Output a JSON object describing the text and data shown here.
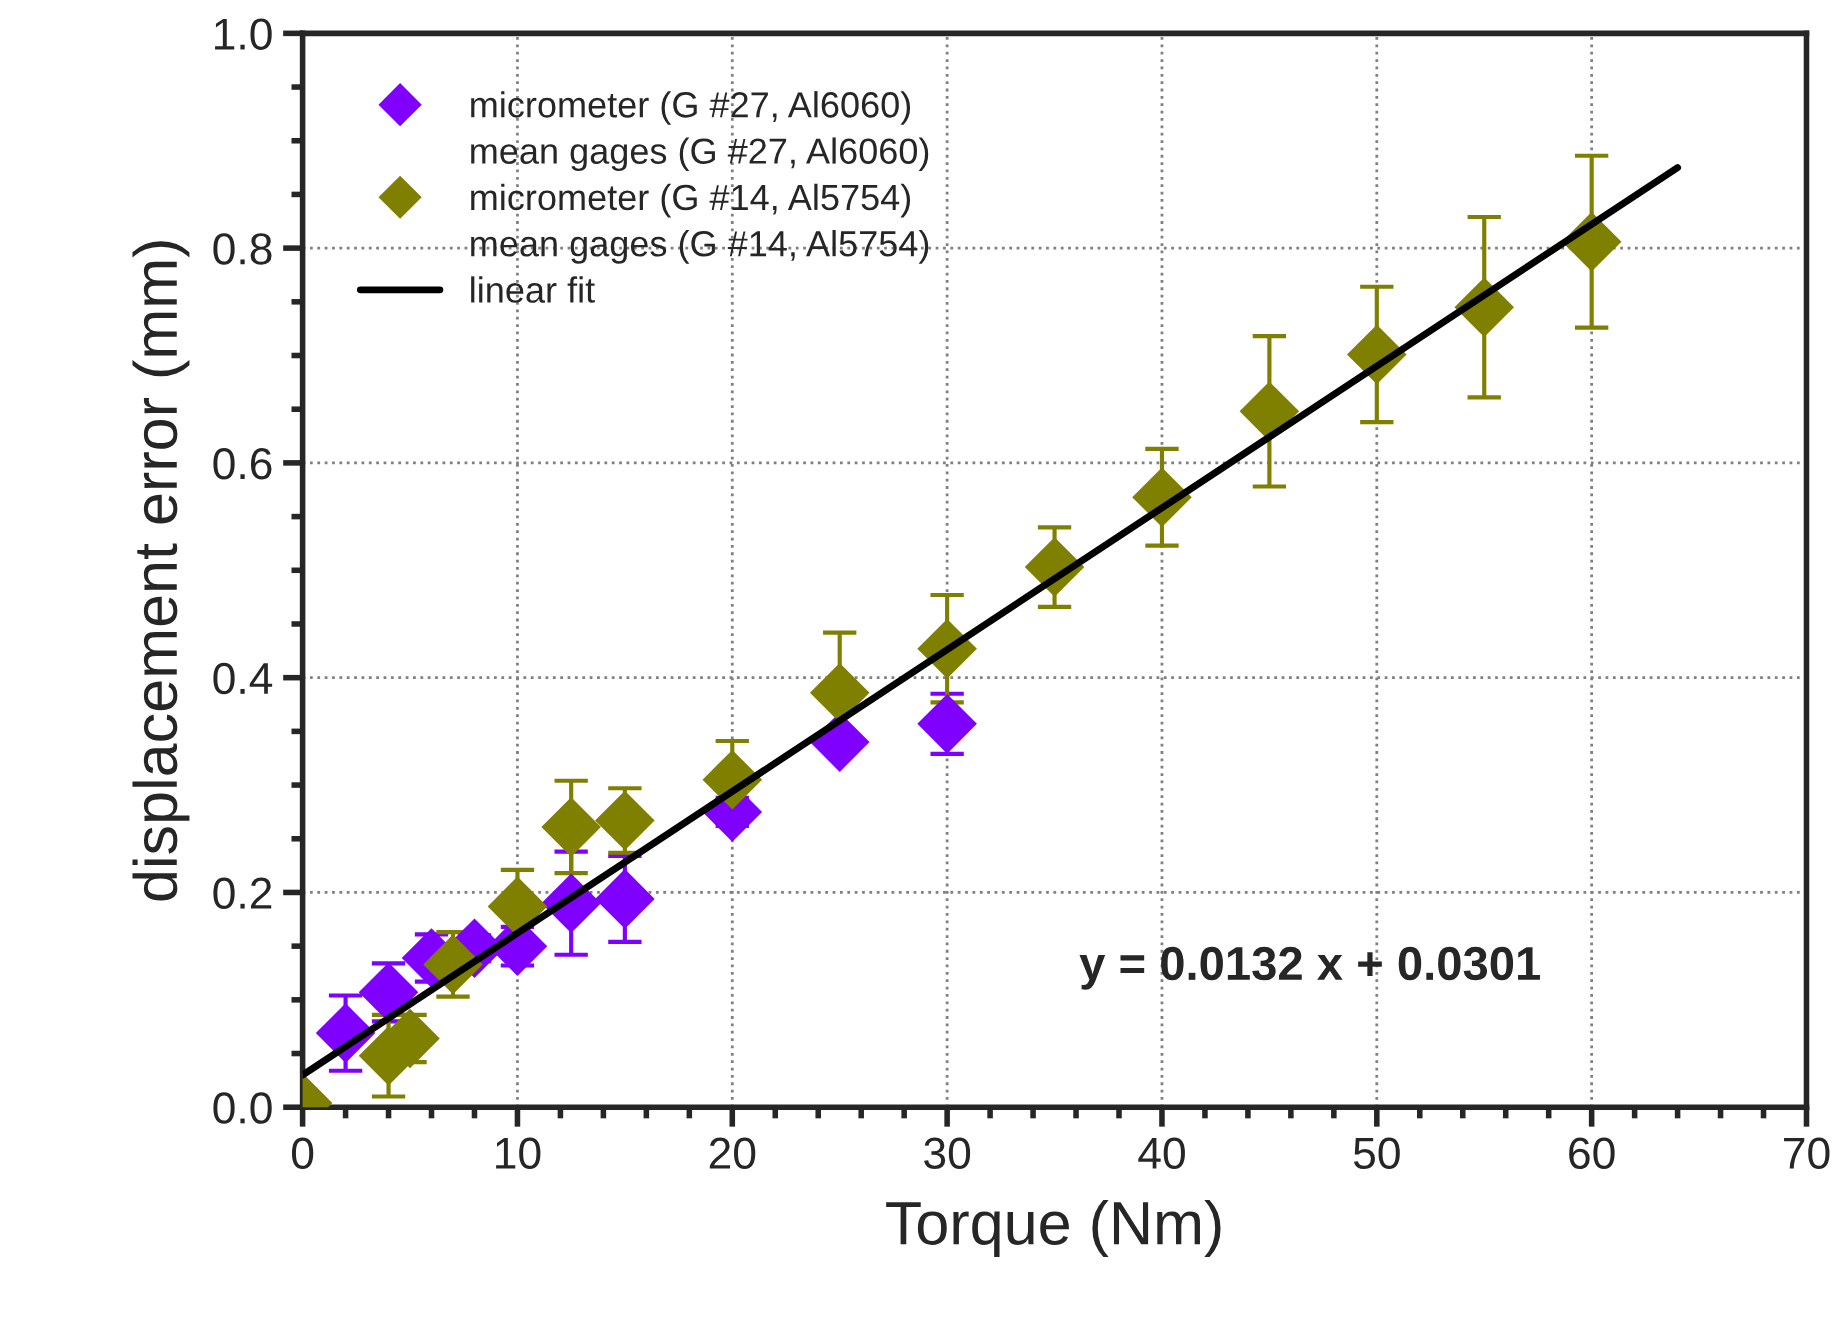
{
  "chart_data": {
    "type": "scatter",
    "xlabel": "Torque (Nm)",
    "ylabel": "displacement error (mm)",
    "xlim": [
      0,
      70
    ],
    "xticks": [
      0,
      10,
      20,
      30,
      40,
      50,
      60,
      70
    ],
    "ylim": [
      0,
      1.0
    ],
    "yticks": [
      {
        "value": 0,
        "label": "0.0"
      },
      {
        "value": 0.2,
        "label": "0.2"
      },
      {
        "value": 0.4,
        "label": "0.4"
      },
      {
        "value": 0.6,
        "label": "0.6"
      },
      {
        "value": 0.8,
        "label": "0.8"
      },
      {
        "value": 1.0,
        "label": "1.0"
      }
    ],
    "grid": true,
    "legend": "top left",
    "marker": "diamond",
    "series": [
      {
        "name": "micrometer (G #27, Al6060)",
        "color": "#8000ff",
        "x": [
          2,
          4,
          6,
          8,
          10,
          12.5,
          15,
          20,
          25,
          30
        ],
        "values": [
          0.069,
          0.107,
          0.139,
          0.148,
          0.15,
          0.19,
          0.194,
          0.275,
          0.34,
          0.357
        ],
        "errors": [
          0.035,
          0.027,
          0.022,
          0.012,
          0.018,
          0.048,
          0.04,
          0.013,
          0.01,
          0.028
        ]
      },
      {
        "name": "mean gages (G #27, Al6060)"
      },
      {
        "name": "micrometer (G #14, Al5754)",
        "color": "#808000",
        "x": [
          0,
          4,
          5,
          7,
          10,
          12.5,
          15,
          20,
          25,
          30,
          35,
          40,
          45,
          50,
          55,
          60
        ],
        "values": [
          0.004,
          0.048,
          0.064,
          0.133,
          0.187,
          0.261,
          0.267,
          0.305,
          0.386,
          0.427,
          0.503,
          0.568,
          0.648,
          0.701,
          0.745,
          0.806
        ],
        "errors": [
          null,
          0.038,
          0.022,
          0.03,
          0.034,
          0.043,
          0.03,
          0.036,
          0.056,
          0.05,
          0.037,
          0.045,
          0.07,
          0.063,
          0.084,
          0.08
        ]
      },
      {
        "name": "mean gages (G #14, Al5754)"
      },
      {
        "name": "linear fit",
        "type": "line",
        "marker": "none",
        "color": "#000000",
        "line_style": "solid",
        "x": [
          0,
          64
        ],
        "values": [
          0.03,
          0.875
        ]
      }
    ],
    "annotations": [
      "y = 0.0132 x + 0.0301"
    ]
  }
}
